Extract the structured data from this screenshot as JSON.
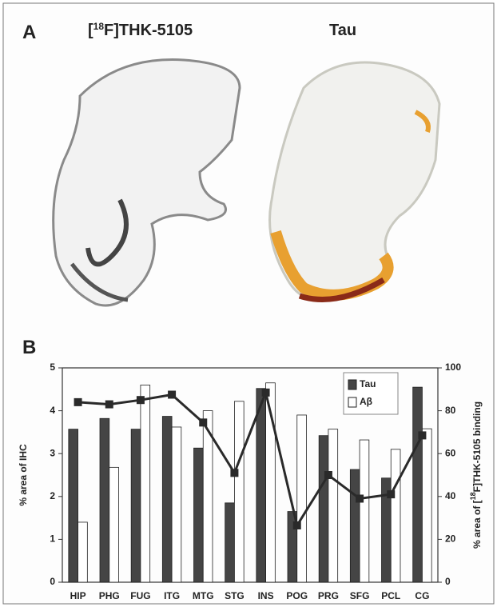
{
  "panel_a": {
    "label": "A",
    "left_title": [
      "[",
      "18",
      "F]THK-5105"
    ],
    "right_title": "Tau"
  },
  "chart_data": {
    "type": "bar",
    "panel_label": "B",
    "categories": [
      "HIP",
      "PHG",
      "FUG",
      "ITG",
      "MTG",
      "STG",
      "INS",
      "POG",
      "PRG",
      "SFG",
      "PCL",
      "CG"
    ],
    "series": [
      {
        "name": "Tau",
        "color": "#454545",
        "values": [
          3.57,
          3.82,
          3.57,
          3.87,
          3.13,
          1.85,
          4.52,
          1.65,
          3.42,
          2.63,
          2.43,
          4.55
        ]
      },
      {
        "name": "Aβ",
        "color": "#ffffff",
        "values": [
          1.4,
          2.68,
          4.6,
          3.62,
          4.0,
          4.22,
          4.65,
          3.9,
          3.57,
          3.32,
          3.1,
          3.58
        ]
      },
      {
        "type": "line",
        "axis": "y2",
        "color": "#2a2a2a",
        "values": [
          84,
          83,
          85,
          87.5,
          74.5,
          51,
          88.5,
          26.5,
          50,
          39,
          41,
          68.5
        ]
      }
    ],
    "ylim": [
      0,
      5
    ],
    "yticks": [
      0,
      1,
      2,
      3,
      4,
      5
    ],
    "y2lim": [
      0,
      100
    ],
    "y2ticks": [
      0,
      20,
      40,
      60,
      80,
      100
    ],
    "ylabel": "% area of IHC",
    "y2label": [
      "% area of [",
      "18",
      "F]THK-5105 binding"
    ],
    "legend": "upper-right"
  }
}
